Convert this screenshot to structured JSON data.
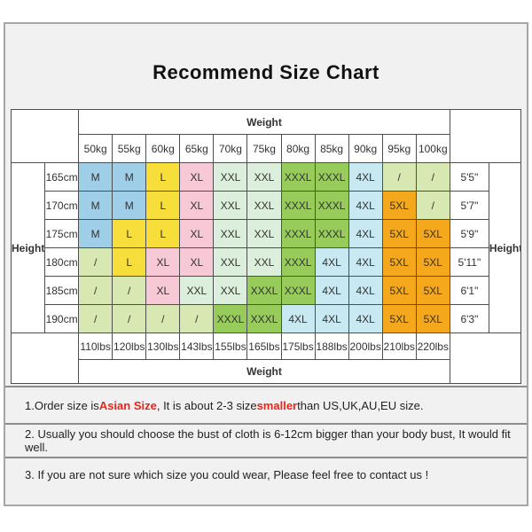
{
  "title": "Recommend Size Chart",
  "chart_data": {
    "type": "table",
    "title": "Recommend Size Chart",
    "weight_label": "Weight",
    "height_label": "Height",
    "weights_kg": [
      "50kg",
      "55kg",
      "60kg",
      "65kg",
      "70kg",
      "75kg",
      "80kg",
      "85kg",
      "90kg",
      "95kg",
      "100kg"
    ],
    "weights_lbs": [
      "110lbs",
      "120lbs",
      "130lbs",
      "143lbs",
      "155lbs",
      "165lbs",
      "175lbs",
      "188lbs",
      "200lbs",
      "210lbs",
      "220lbs"
    ],
    "heights_cm": [
      "165cm",
      "170cm",
      "175cm",
      "180cm",
      "185cm",
      "190cm"
    ],
    "heights_ft": [
      "5'5\"",
      "5'7\"",
      "5'9\"",
      "5'11\"",
      "6'1\"",
      "6'3\""
    ],
    "size_matrix": [
      [
        "M",
        "M",
        "L",
        "XL",
        "XXL",
        "XXL",
        "XXXL",
        "XXXL",
        "4XL",
        "/",
        "/"
      ],
      [
        "M",
        "M",
        "L",
        "XL",
        "XXL",
        "XXL",
        "XXXL",
        "XXXL",
        "4XL",
        "5XL",
        "/"
      ],
      [
        "M",
        "L",
        "L",
        "XL",
        "XXL",
        "XXL",
        "XXXL",
        "XXXL",
        "4XL",
        "5XL",
        "5XL"
      ],
      [
        "/",
        "L",
        "XL",
        "XL",
        "XXL",
        "XXL",
        "XXXL",
        "4XL",
        "4XL",
        "5XL",
        "5XL"
      ],
      [
        "/",
        "/",
        "XL",
        "XXL",
        "XXL",
        "XXXL",
        "XXXL",
        "4XL",
        "4XL",
        "5XL",
        "5XL"
      ],
      [
        "/",
        "/",
        "/",
        "/",
        "XXXL",
        "XXXL",
        "4XL",
        "4XL",
        "4XL",
        "5XL",
        "5XL"
      ]
    ],
    "size_colors": {
      "M": "#9fcfe8",
      "L": "#f8de3b",
      "XL": "#f7c8d5",
      "XXL": "#dceedc",
      "XXXL": "#97cc5b",
      "4XL": "#c9e9f2",
      "5XL": "#f5a81c",
      "/": "#d7e8b2"
    }
  },
  "notes": [
    {
      "segments": [
        {
          "text": "1.Order size is ",
          "highlight": false
        },
        {
          "text": "Asian Size",
          "highlight": true
        },
        {
          "text": ", It is about 2-3 size ",
          "highlight": false
        },
        {
          "text": "smaller",
          "highlight": true
        },
        {
          "text": " than US,UK,AU,EU size.",
          "highlight": false
        }
      ]
    },
    {
      "segments": [
        {
          "text": "2. Usually you should choose the bust of cloth is 6-12cm bigger than your body bust, It would fit well.",
          "highlight": false
        }
      ]
    },
    {
      "segments": [
        {
          "text": "3. If you are not sure which size you could wear, Please feel free to contact us !",
          "highlight": false
        }
      ]
    }
  ],
  "colors": {
    "highlight_red": "#e8251c",
    "panel_background": "#f1f1f1",
    "table_border": "#4e4e4e",
    "panel_border": "#a6a6a6"
  }
}
